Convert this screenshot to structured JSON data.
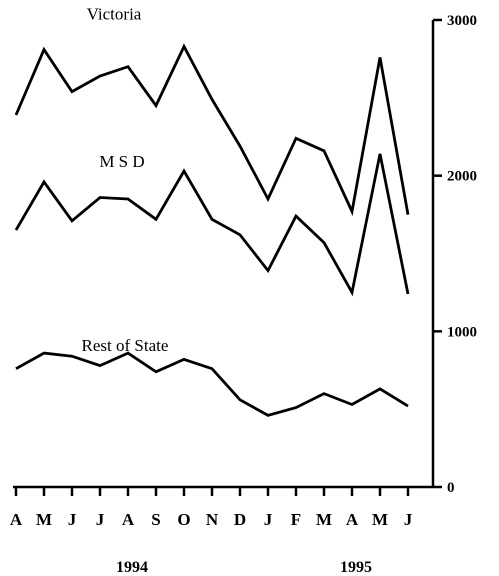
{
  "chart_data": {
    "type": "line",
    "categories": [
      "A",
      "M",
      "J",
      "J",
      "A",
      "S",
      "O",
      "N",
      "D",
      "J",
      "F",
      "M",
      "A",
      "M",
      "J"
    ],
    "year_labels": [
      {
        "label": "1994",
        "category_index": 4
      },
      {
        "label": "1995",
        "category_index": 12
      }
    ],
    "y_ticks": [
      {
        "value": 0,
        "label": "0"
      },
      {
        "value": 1000,
        "label": "1000"
      },
      {
        "value": 2000,
        "label": "2000"
      },
      {
        "value": 3000,
        "label": "3000"
      }
    ],
    "ylim": [
      0,
      3000
    ],
    "y_axis_side": "right",
    "grid": false,
    "title": "",
    "xlabel": "",
    "ylabel": "",
    "series": [
      {
        "name": "Victoria",
        "values": [
          2390,
          2810,
          2540,
          2640,
          2700,
          2450,
          2830,
          2490,
          2190,
          1850,
          2240,
          2160,
          1770,
          2760,
          1750
        ]
      },
      {
        "name": "M S D",
        "values": [
          1650,
          1960,
          1710,
          1860,
          1850,
          1720,
          2030,
          1720,
          1620,
          1390,
          1740,
          1570,
          1250,
          2140,
          1240
        ]
      },
      {
        "name": "Rest of State",
        "values": [
          760,
          860,
          840,
          780,
          860,
          740,
          820,
          760,
          560,
          460,
          510,
          600,
          530,
          630,
          520
        ]
      }
    ]
  }
}
